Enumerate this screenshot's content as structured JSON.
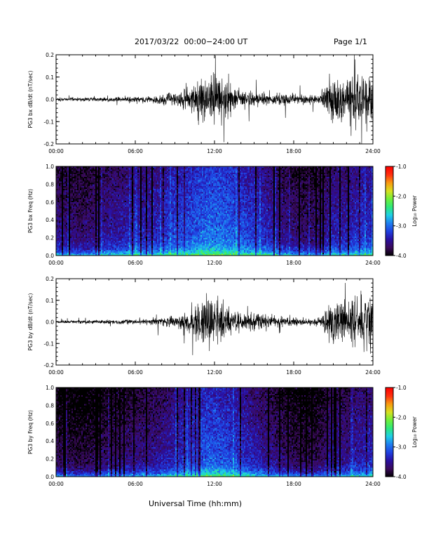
{
  "header": {
    "title": "2017/03/22  00:00−24:00 UT",
    "page": "Page 1/1"
  },
  "footer": {
    "xlabel": "Universal Time (hh:mm)"
  },
  "colors": {
    "trace": "#000000",
    "colormap": [
      "#000000",
      "#3a0a5a",
      "#2a0fa0",
      "#1f3fe0",
      "#1e7df0",
      "#1ecfe6",
      "#2ee87a",
      "#6ef03a",
      "#d8e020",
      "#f89a10",
      "#ff3010",
      "#ff0000"
    ]
  },
  "chart_data": [
    {
      "type": "line",
      "ylabel": "PG3 bx dB/dt (nT/sec)",
      "xlim": [
        "00:00",
        "24:00"
      ],
      "ylim": [
        -0.2,
        0.2
      ],
      "x_ticks": [
        "00:00",
        "06:00",
        "12:00",
        "18:00",
        "24:00"
      ],
      "y_ticks": [
        "-0.2",
        "-0.1",
        "0.0",
        "0.1",
        "0.2"
      ],
      "series": [
        {
          "x": [
            "00:00",
            "01:00",
            "02:00",
            "03:00",
            "04:00",
            "05:00",
            "06:00",
            "07:00",
            "08:00",
            "09:00",
            "10:00",
            "11:00",
            "12:00",
            "13:00",
            "14:00",
            "15:00",
            "16:00",
            "17:00",
            "18:00",
            "19:00",
            "20:00",
            "21:00",
            "22:00",
            "23:00",
            "24:00"
          ],
          "amplitude": [
            0.012,
            0.012,
            0.015,
            0.015,
            0.018,
            0.02,
            0.02,
            0.025,
            0.035,
            0.05,
            0.09,
            0.16,
            0.2,
            0.12,
            0.07,
            0.06,
            0.05,
            0.045,
            0.04,
            0.035,
            0.03,
            0.2,
            0.18,
            0.2,
            0.2
          ]
        }
      ]
    },
    {
      "type": "heatmap",
      "ylabel": "PG3 bx Freq (Hz)",
      "xlim": [
        "00:00",
        "24:00"
      ],
      "ylim": [
        0.0,
        1.0
      ],
      "x_ticks": [
        "00:00",
        "06:00",
        "12:00",
        "18:00",
        "24:00"
      ],
      "y_ticks": [
        "0.0",
        "0.2",
        "0.4",
        "0.6",
        "0.8",
        "1.0"
      ],
      "colorbar": {
        "label": "Log₁₀ Power",
        "range": [
          -4.0,
          -1.0
        ],
        "ticks": [
          "-1.0",
          "-2.0",
          "-3.0",
          "-4.0"
        ]
      },
      "mean_log_power_by_hour": [
        -3.5,
        -3.55,
        -3.6,
        -3.5,
        -3.4,
        -3.35,
        -3.3,
        -3.3,
        -3.25,
        -3.1,
        -3.05,
        -2.95,
        -2.9,
        -2.95,
        -3.05,
        -3.15,
        -3.25,
        -3.45,
        -3.55,
        -3.6,
        -3.55,
        -3.3,
        -3.35,
        -3.2,
        -3.2
      ]
    },
    {
      "type": "line",
      "ylabel": "PG3 by dB/dt (nT/sec)",
      "xlim": [
        "00:00",
        "24:00"
      ],
      "ylim": [
        -0.2,
        0.2
      ],
      "x_ticks": [
        "00:00",
        "06:00",
        "12:00",
        "18:00",
        "24:00"
      ],
      "y_ticks": [
        "-0.2",
        "-0.1",
        "0.0",
        "0.1",
        "0.2"
      ],
      "series": [
        {
          "x": [
            "00:00",
            "01:00",
            "02:00",
            "03:00",
            "04:00",
            "05:00",
            "06:00",
            "07:00",
            "08:00",
            "09:00",
            "10:00",
            "11:00",
            "12:00",
            "13:00",
            "14:00",
            "15:00",
            "16:00",
            "17:00",
            "18:00",
            "19:00",
            "20:00",
            "21:00",
            "22:00",
            "23:00",
            "24:00"
          ],
          "amplitude": [
            0.01,
            0.012,
            0.015,
            0.014,
            0.016,
            0.018,
            0.02,
            0.025,
            0.035,
            0.05,
            0.08,
            0.17,
            0.2,
            0.12,
            0.08,
            0.07,
            0.06,
            0.045,
            0.035,
            0.03,
            0.03,
            0.2,
            0.15,
            0.2,
            0.2
          ]
        }
      ]
    },
    {
      "type": "heatmap",
      "ylabel": "PG3 by Freq (Hz)",
      "xlim": [
        "00:00",
        "24:00"
      ],
      "ylim": [
        0.0,
        1.0
      ],
      "x_ticks": [
        "00:00",
        "06:00",
        "12:00",
        "18:00",
        "24:00"
      ],
      "y_ticks": [
        "0.0",
        "0.2",
        "0.4",
        "0.6",
        "0.8",
        "1.0"
      ],
      "colorbar": {
        "label": "Log₁₀ Power",
        "range": [
          -4.0,
          -1.0
        ],
        "ticks": [
          "-1.0",
          "-2.0",
          "-3.0",
          "-4.0"
        ]
      },
      "mean_log_power_by_hour": [
        -3.7,
        -3.75,
        -3.8,
        -3.7,
        -3.65,
        -3.6,
        -3.55,
        -3.5,
        -3.45,
        -3.3,
        -3.2,
        -3.05,
        -3.0,
        -3.1,
        -3.2,
        -3.35,
        -3.45,
        -3.6,
        -3.7,
        -3.75,
        -3.7,
        -3.4,
        -3.5,
        -3.35,
        -3.3
      ]
    }
  ]
}
